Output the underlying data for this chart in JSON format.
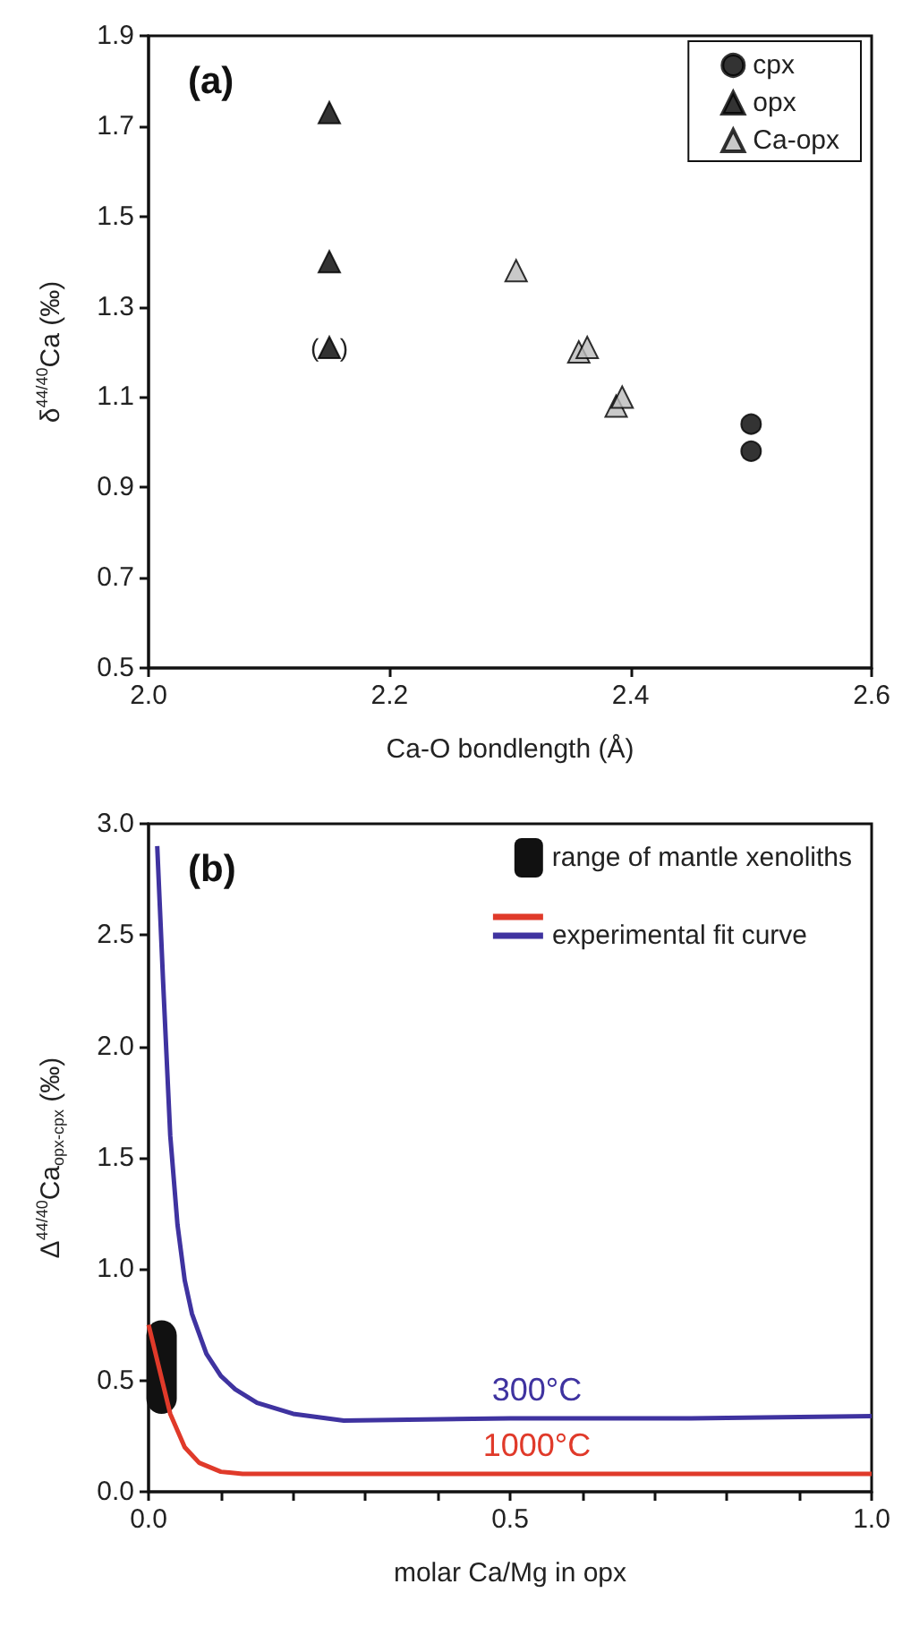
{
  "chart_data": [
    {
      "type": "scatter",
      "title": "(a)",
      "xlabel": "Ca-O bondlength (Å)",
      "ylabel": "δ$^{44/40}$Ca (‰)",
      "xlim": [
        2.0,
        2.6
      ],
      "xticks": [
        {
          "value": 2.0,
          "label": "2.0"
        },
        2.2,
        2.4,
        2.6
      ],
      "ylim": [
        0.5,
        1.9
      ],
      "yticks": [
        0.5,
        0.7,
        0.9,
        1.1,
        1.3,
        1.5,
        1.7,
        1.9
      ],
      "grid": false,
      "legend": "top right",
      "series": [
        {
          "name": "cpx",
          "color": "#000000",
          "marker": "circle",
          "x": [
            2.5,
            2.5
          ],
          "values": [
            1.04,
            0.98
          ]
        },
        {
          "name": "opx",
          "color": "#000000",
          "marker": "triangle",
          "x": [
            2.15,
            2.15,
            2.15
          ],
          "values": [
            1.73,
            1.4,
            1.21
          ]
        },
        {
          "name": "Ca-opx",
          "color": "#bbbbbb",
          "marker": "triangle",
          "x": [
            2.305,
            2.357,
            2.364,
            2.388,
            2.393
          ],
          "values": [
            1.38,
            1.2,
            1.21,
            1.08,
            1.1
          ]
        }
      ],
      "annotations": [
        {
          "text": "(   )",
          "x": 2.15,
          "y": 1.21
        }
      ]
    },
    {
      "type": "line",
      "title": "(b)",
      "xlabel": "molar Ca/Mg in opx",
      "ylabel": "Δ$^{44/40}$Ca$_{opx-cpx}$ (‰)",
      "xlim": [
        0,
        1
      ],
      "xticks": [
        {
          "value": 0,
          "label": "0.0"
        },
        {
          "value": 0.1,
          "label": null
        },
        {
          "value": 0.2,
          "label": null
        },
        {
          "value": 0.3,
          "label": null
        },
        {
          "value": 0.4,
          "label": null
        },
        0.5,
        {
          "value": 0.6,
          "label": null
        },
        {
          "value": 0.7,
          "label": null
        },
        {
          "value": 0.8,
          "label": null
        },
        {
          "value": 0.9,
          "label": null
        },
        {
          "value": 1,
          "label": "1.0"
        }
      ],
      "ylim": [
        0,
        3
      ],
      "yticks": [
        {
          "value": 0,
          "label": "0.0"
        },
        0.5,
        {
          "value": 1,
          "label": "1.0"
        },
        1.5,
        {
          "value": 2,
          "label": "2.0"
        },
        2.5,
        {
          "value": 3,
          "label": "3.0"
        }
      ],
      "grid": false,
      "legend": "top right",
      "line_style": "solid",
      "series": [
        {
          "name": "1000°C",
          "color": "#e03a2a",
          "x": [
            0,
            0.03,
            0.05,
            0.07,
            0.1,
            0.13,
            0.5,
            1.0
          ],
          "values": [
            0.75,
            0.35,
            0.2,
            0.13,
            0.09,
            0.08,
            0.08,
            0.08
          ]
        },
        {
          "name": "300°C",
          "color": "#3f33a0",
          "x": [
            0.012,
            0.02,
            0.03,
            0.04,
            0.05,
            0.06,
            0.08,
            0.1,
            0.12,
            0.15,
            0.2,
            0.27,
            0.5,
            0.75,
            1.0
          ],
          "values": [
            2.9,
            2.3,
            1.6,
            1.2,
            0.95,
            0.8,
            0.62,
            0.52,
            0.46,
            0.4,
            0.35,
            0.32,
            0.33,
            0.33,
            0.34
          ]
        },
        {
          "name": "range of mantle xenoliths",
          "type": "bar",
          "color": "#111111",
          "x": [
            0.018
          ],
          "base": [
            0.35
          ],
          "values": [
            0.42
          ]
        }
      ],
      "annotations": [
        "experimental fit curve"
      ]
    }
  ]
}
